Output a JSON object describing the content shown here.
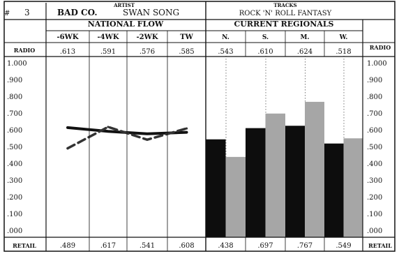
{
  "header": {
    "rank_symbol": "#",
    "rank": "3",
    "artist_caption": "ARTIST",
    "artist": "BAD CO.",
    "label": "SWAN SONG",
    "tracks_caption": "TRACKS",
    "track": "ROCK 'N' ROLL FANTASY"
  },
  "sections": {
    "national": "NATIONAL FLOW",
    "regional": "CURRENT REGIONALS"
  },
  "row_labels": {
    "radio": "RADIO",
    "retail": "RETAIL"
  },
  "chart_data": {
    "type": "line",
    "y_ticks": [
      "1.000",
      ".900",
      ".800",
      ".700",
      ".600",
      ".500",
      ".400",
      ".300",
      ".200",
      ".100",
      ".000"
    ],
    "ylim": [
      0,
      1
    ],
    "grid": true,
    "national": {
      "type": "line",
      "categories": [
        "-6WK",
        "-4WK",
        "-2WK",
        "TW"
      ],
      "series": [
        {
          "values": [
            0.613,
            0.591,
            0.576,
            0.585
          ],
          "display": [
            ".613",
            ".591",
            ".576",
            ".585"
          ],
          "color": "#111111",
          "style": "solid"
        },
        {
          "values": [
            0.489,
            0.617,
            0.541,
            0.608
          ],
          "display": [
            ".489",
            ".617",
            ".541",
            ".608"
          ],
          "color": "#333333",
          "style": "dashed"
        }
      ]
    },
    "regional": {
      "type": "bar",
      "categories": [
        "N.",
        "S.",
        "M.",
        "W."
      ],
      "series": [
        {
          "values": [
            0.543,
            0.61,
            0.624,
            0.518
          ],
          "display": [
            ".543",
            ".610",
            ".624",
            ".518"
          ],
          "color": "#0d0d0d"
        },
        {
          "values": [
            0.438,
            0.697,
            0.767,
            0.549
          ],
          "display": [
            ".438",
            ".697",
            ".767",
            ".549"
          ],
          "color": "#a6a6a6"
        }
      ]
    }
  }
}
